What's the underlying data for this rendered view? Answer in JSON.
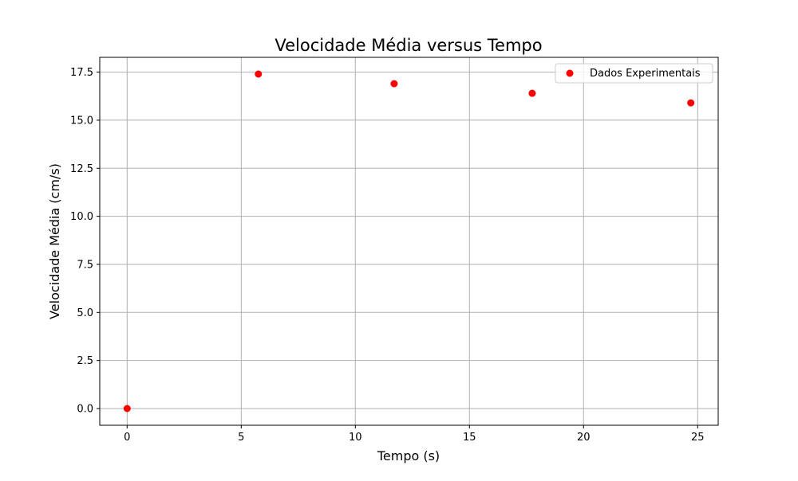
{
  "chart_data": {
    "type": "scatter",
    "title": "Velocidade Média versus Tempo",
    "xlabel": "Tempo (s)",
    "ylabel": "Velocidade Média (cm/s)",
    "xlim": [
      -1.2,
      25.9
    ],
    "ylim": [
      -0.87,
      18.27
    ],
    "xticks": [
      0,
      5,
      10,
      15,
      20,
      25
    ],
    "xtick_labels": [
      "0",
      "5",
      "10",
      "15",
      "20",
      "25"
    ],
    "yticks": [
      0.0,
      2.5,
      5.0,
      7.5,
      10.0,
      12.5,
      15.0,
      17.5
    ],
    "ytick_labels": [
      "0.0",
      "2.5",
      "5.0",
      "7.5",
      "10.0",
      "12.5",
      "15.0",
      "17.5"
    ],
    "grid": true,
    "legend_position": "top-right",
    "series": [
      {
        "name": "Dados Experimentais",
        "color": "#ff0000",
        "marker": "circle",
        "x": [
          0,
          5.75,
          11.7,
          17.75,
          24.7
        ],
        "y": [
          0,
          17.4,
          16.9,
          16.4,
          15.9
        ]
      }
    ]
  }
}
